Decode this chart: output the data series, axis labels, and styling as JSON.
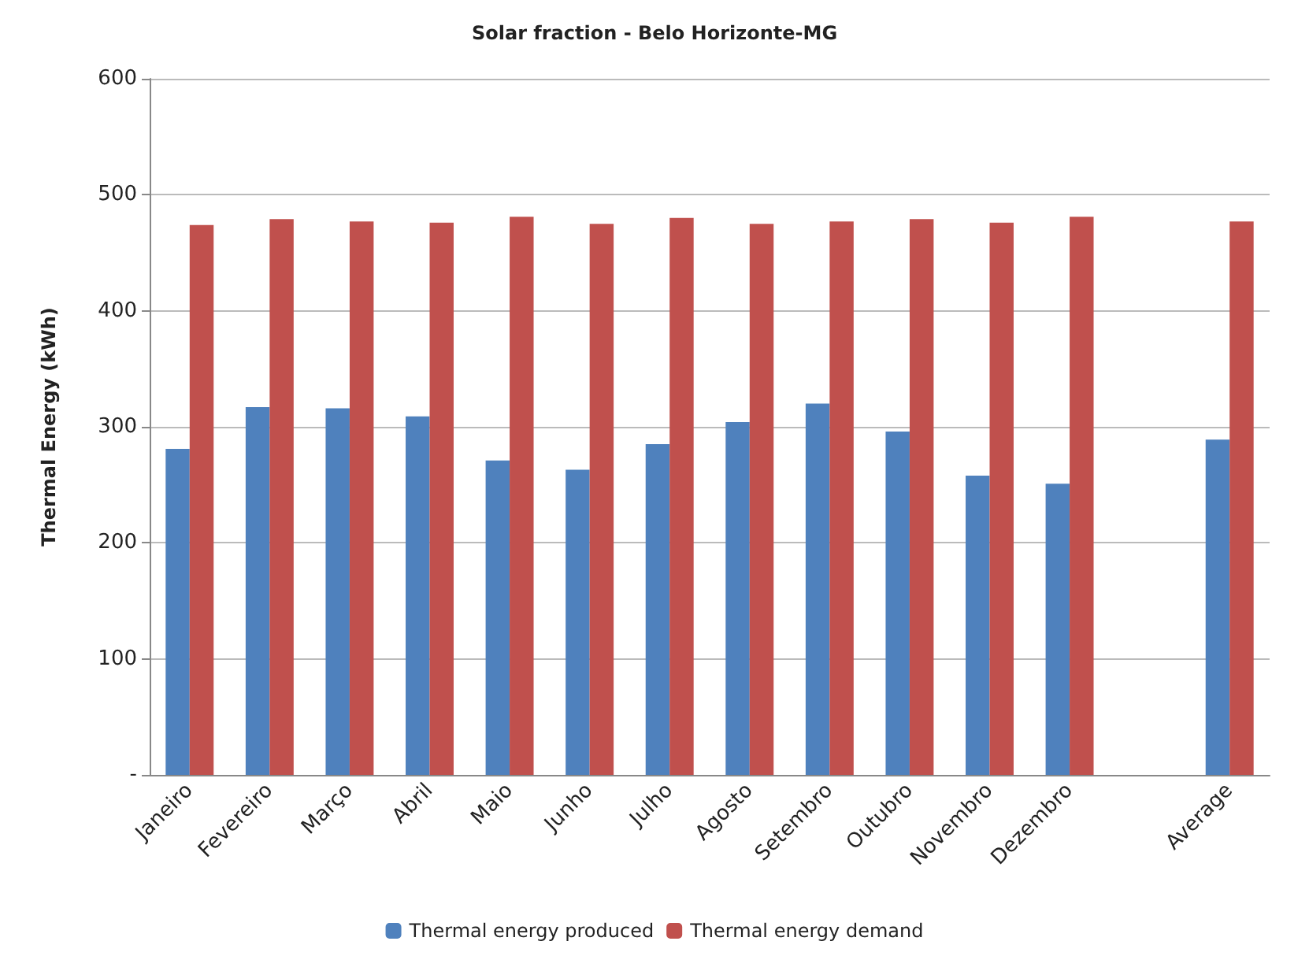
{
  "chart_data": {
    "type": "bar",
    "title": "Solar fraction - Belo Horizonte-MG",
    "ylabel": "Thermal Energy (kWh)",
    "categories": [
      "Janeiro",
      "Fevereiro",
      "Março",
      "Abril",
      "Maio",
      "Junho",
      "Julho",
      "Agosto",
      "Setembro",
      "Outubro",
      "Novembro",
      "Dezembro",
      null,
      "Average"
    ],
    "series": [
      {
        "name": "Thermal energy produced",
        "color": "#4f81bd",
        "values": [
          281,
          317,
          316,
          309,
          271,
          263,
          285,
          304,
          320,
          296,
          258,
          251,
          null,
          289
        ]
      },
      {
        "name": "Thermal energy demand",
        "color": "#c0504d",
        "values": [
          474,
          479,
          477,
          476,
          481,
          475,
          480,
          475,
          477,
          479,
          476,
          481,
          null,
          477
        ]
      }
    ],
    "ylim": [
      0,
      600
    ],
    "yticks": [
      {
        "value": 0,
        "label": "-"
      },
      100,
      200,
      300,
      400,
      500,
      600
    ],
    "grid": "y",
    "legend": "bottom"
  }
}
